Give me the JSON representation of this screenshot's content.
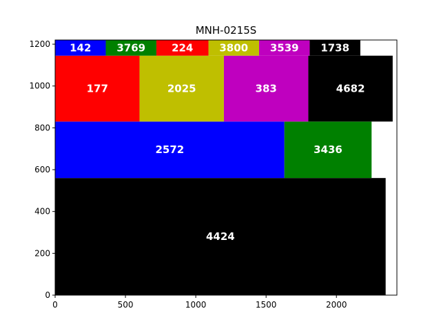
{
  "chart_data": {
    "type": "treemap-rectangles",
    "title": "MNH-0215S",
    "xlabel": "",
    "ylabel": "",
    "xlim": [
      0,
      2430
    ],
    "ylim": [
      0,
      1220
    ],
    "x_ticks": [
      0,
      500,
      1000,
      1500,
      2000
    ],
    "y_ticks": [
      0,
      200,
      400,
      600,
      800,
      1000,
      1200
    ],
    "grid": false,
    "rectangles": [
      {
        "label": "4424",
        "x0": 0,
        "x1": 2350,
        "y0": 0,
        "y1": 560,
        "color": "#000000"
      },
      {
        "label": "2572",
        "x0": 0,
        "x1": 1630,
        "y0": 560,
        "y1": 830,
        "color": "#0000ff"
      },
      {
        "label": "3436",
        "x0": 1630,
        "x1": 2250,
        "y0": 560,
        "y1": 830,
        "color": "#008000"
      },
      {
        "label": "177",
        "x0": 0,
        "x1": 600,
        "y0": 830,
        "y1": 1145,
        "color": "#ff0000"
      },
      {
        "label": "2025",
        "x0": 600,
        "x1": 1200,
        "y0": 830,
        "y1": 1145,
        "color": "#bfbf00"
      },
      {
        "label": "383",
        "x0": 1200,
        "x1": 1800,
        "y0": 830,
        "y1": 1145,
        "color": "#bf00bf"
      },
      {
        "label": "4682",
        "x0": 1800,
        "x1": 2400,
        "y0": 830,
        "y1": 1145,
        "color": "#000000"
      },
      {
        "label": "142",
        "x0": 0,
        "x1": 360,
        "y0": 1145,
        "y1": 1225,
        "color": "#0000ff"
      },
      {
        "label": "3769",
        "x0": 360,
        "x1": 720,
        "y0": 1145,
        "y1": 1225,
        "color": "#008000"
      },
      {
        "label": "224",
        "x0": 720,
        "x1": 1090,
        "y0": 1145,
        "y1": 1225,
        "color": "#ff0000"
      },
      {
        "label": "3800",
        "x0": 1090,
        "x1": 1450,
        "y0": 1145,
        "y1": 1225,
        "color": "#bfbf00"
      },
      {
        "label": "3539",
        "x0": 1450,
        "x1": 1810,
        "y0": 1145,
        "y1": 1225,
        "color": "#bf00bf"
      },
      {
        "label": "1738",
        "x0": 1810,
        "x1": 2170,
        "y0": 1145,
        "y1": 1225,
        "color": "#000000"
      }
    ]
  }
}
